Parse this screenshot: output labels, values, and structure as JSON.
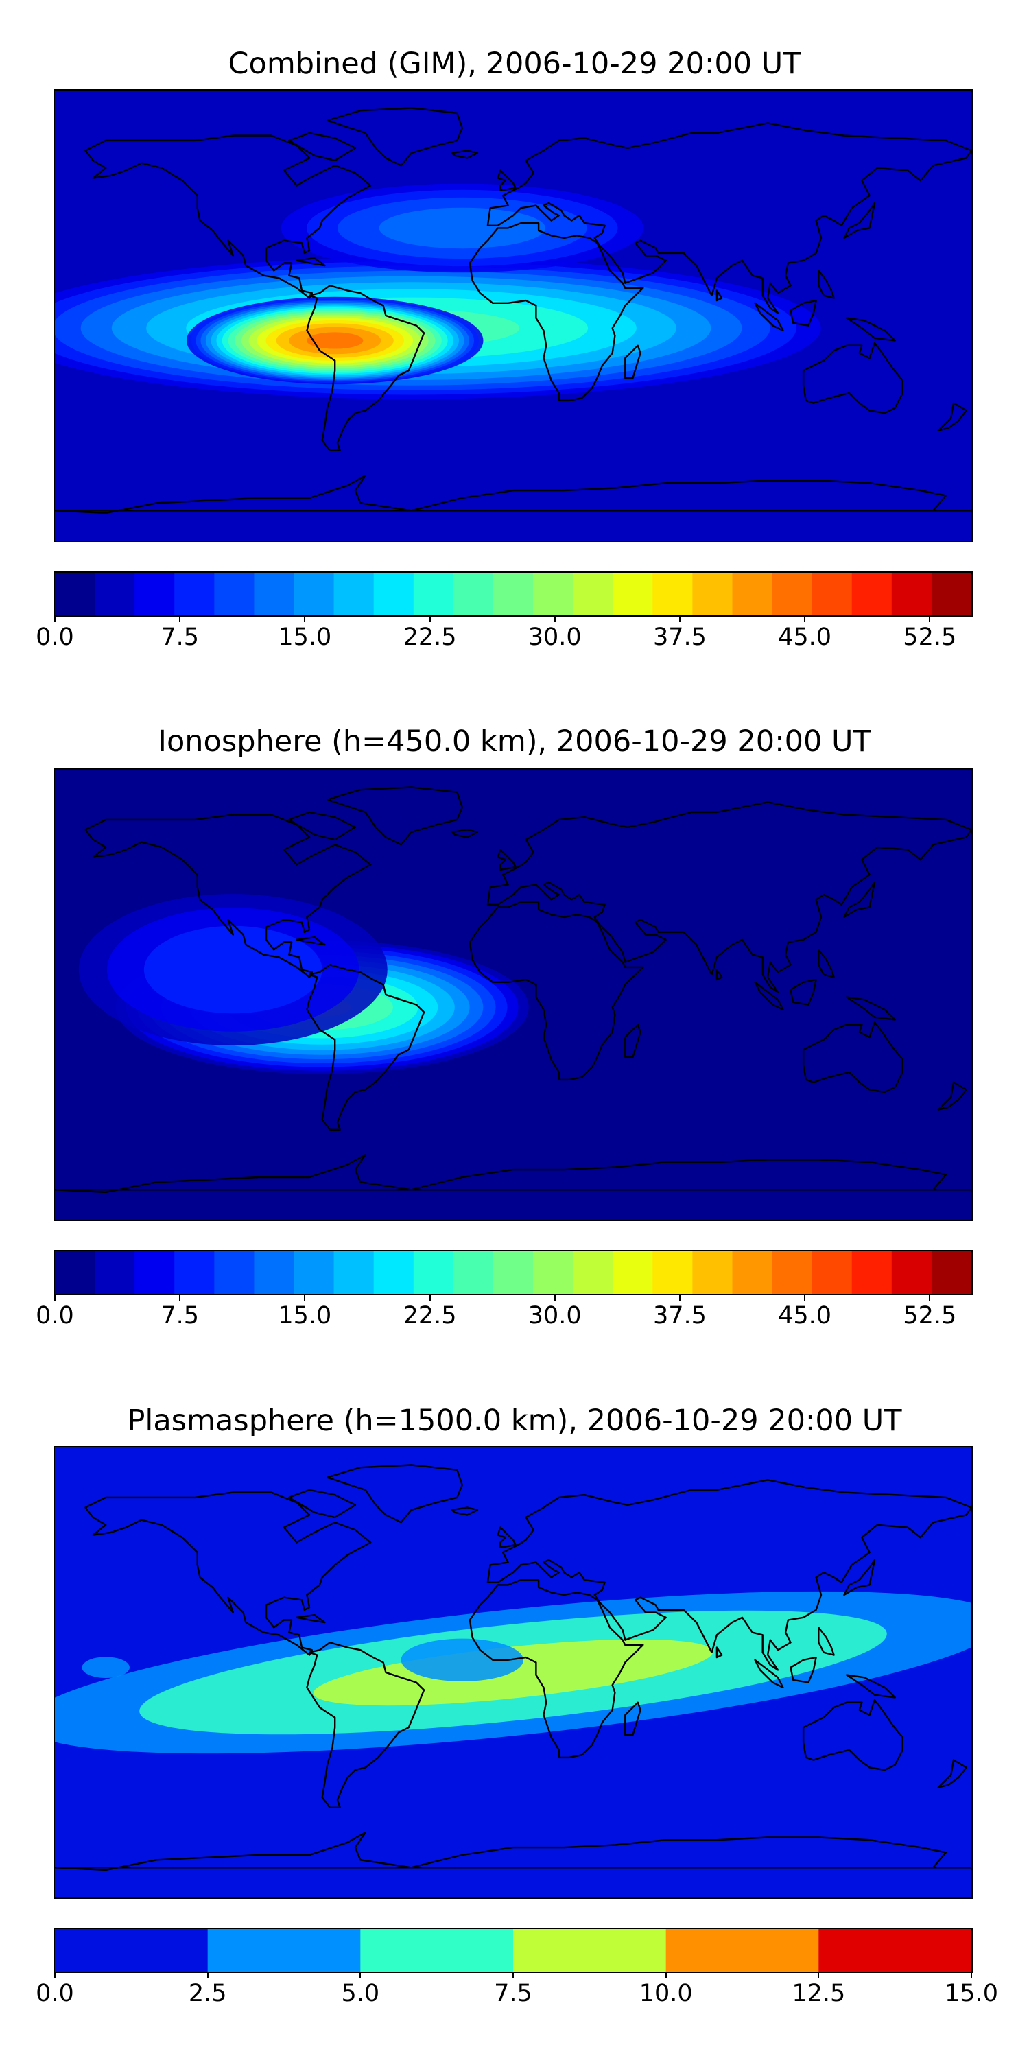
{
  "panels": [
    {
      "id": "combined",
      "title": "Combined (GIM), 2006-10-29 20:00 UT",
      "colorbar": {
        "vmin": 0,
        "vmax": 55,
        "levels": 22,
        "tick_values": [
          0,
          7.5,
          15,
          22.5,
          30,
          37.5,
          45,
          52.5
        ],
        "tick_labels": [
          "0.0",
          "7.5",
          "15.0",
          "22.5",
          "30.0",
          "37.5",
          "45.0",
          "52.5"
        ],
        "colors": [
          "#00008f",
          "#0000bf",
          "#0000f0",
          "#0020ff",
          "#0048ff",
          "#0070ff",
          "#0098ff",
          "#00c0ff",
          "#00e8ff",
          "#20ffd8",
          "#48ffb0",
          "#70ff88",
          "#98ff60",
          "#c0ff38",
          "#e8ff10",
          "#ffe800",
          "#ffc000",
          "#ff9800",
          "#ff7000",
          "#ff4800",
          "#ff2000",
          "#d80000",
          "#a00000"
        ]
      },
      "base_level": 4,
      "features": [
        {
          "name": "equatorial-band",
          "lon": -40,
          "lat": -5,
          "rlon": 170,
          "rlat": 30,
          "peak": 24
        },
        {
          "name": "south-america-peak",
          "lon": -70,
          "lat": -10,
          "rlon": 60,
          "rlat": 18,
          "peak": 44
        },
        {
          "name": "north-atlantic-lobe",
          "lon": -20,
          "lat": 35,
          "rlon": 80,
          "rlat": 20,
          "peak": 12
        }
      ]
    },
    {
      "id": "ionosphere",
      "title": "Ionosphere  (h=450.0 km), 2006-10-29 20:00 UT",
      "colorbar": {
        "vmin": 0,
        "vmax": 55,
        "levels": 22,
        "tick_values": [
          0,
          7.5,
          15,
          22.5,
          30,
          37.5,
          45,
          52.5
        ],
        "tick_labels": [
          "0.0",
          "7.5",
          "15.0",
          "22.5",
          "30.0",
          "37.5",
          "45.0",
          "52.5"
        ],
        "colors": [
          "#00008f",
          "#0000bf",
          "#0000f0",
          "#0020ff",
          "#0048ff",
          "#0070ff",
          "#0098ff",
          "#00c0ff",
          "#00e8ff",
          "#20ffd8",
          "#48ffb0",
          "#70ff88",
          "#98ff60",
          "#c0ff38",
          "#e8ff10",
          "#ffe800",
          "#ffc000",
          "#ff9800",
          "#ff7000",
          "#ff4800",
          "#ff2000",
          "#d80000",
          "#a00000"
        ]
      },
      "base_level": 2,
      "features": [
        {
          "name": "americas-anomaly",
          "lon": -75,
          "lat": -5,
          "rlon": 85,
          "rlat": 28,
          "peak": 28
        },
        {
          "name": "western-arc",
          "lon": -110,
          "lat": 10,
          "rlon": 70,
          "rlat": 35,
          "peak": 10
        }
      ]
    },
    {
      "id": "plasmasphere",
      "title": "Plasmasphere (h=1500.0 km), 2006-10-29 20:00 UT",
      "colorbar": {
        "vmin": 0,
        "vmax": 15,
        "levels": 6,
        "tick_values": [
          0,
          2.5,
          5,
          7.5,
          10,
          12.5,
          15
        ],
        "tick_labels": [
          "0.0",
          "2.5",
          "5.0",
          "7.5",
          "10.0",
          "12.5",
          "15.0"
        ],
        "colors": [
          "#0010e0",
          "#0090ff",
          "#30ffc8",
          "#c0ff38",
          "#ff9000",
          "#e00000"
        ]
      },
      "base_level": 1.5,
      "features": [
        {
          "name": "tilted-band",
          "lon": 0,
          "lat": 0,
          "rlon": 230,
          "rlat": 30,
          "peak": 8.5
        },
        {
          "name": "africa-atlantic-max",
          "lon": -20,
          "lat": 5,
          "rlon": 45,
          "rlat": 16,
          "peak": 3.5
        },
        {
          "name": "pacific-max",
          "lon": -160,
          "lat": 2,
          "rlon": 20,
          "rlat": 9,
          "peak": 3.2
        }
      ]
    }
  ]
}
